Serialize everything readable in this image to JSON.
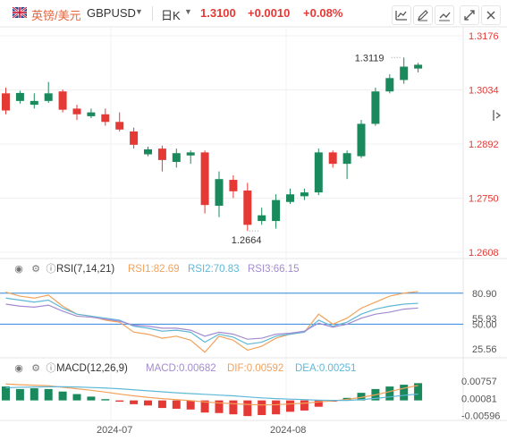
{
  "header": {
    "pair_name": "英镑/美元",
    "symbol": "GBPUSD",
    "period": "日K",
    "price": "1.3100",
    "change": "+0.0010",
    "change_pct": "+0.08%"
  },
  "toolbar": {
    "icons": [
      "chart-type-icon",
      "draw-icon",
      "compare-icon",
      "fullscreen-icon",
      "close-icon"
    ]
  },
  "indicators": {
    "rsi": {
      "label": "RSI(7,14,21)",
      "rsi1": "RSI1:82.69",
      "rsi2": "RSI2:70.83",
      "rsi3": "RSI3:66.15"
    },
    "macd": {
      "label": "MACD(12,26,9)",
      "macd": "MACD:0.00682",
      "dif": "DIF:0.00592",
      "dea": "DEA:0.00251"
    }
  },
  "colors": {
    "up": "#1a8a5c",
    "down": "#e53935",
    "rsi1": "#f2a25c",
    "rsi2": "#5fb8d6",
    "rsi3": "#a38bd1",
    "level": "#2e86de"
  },
  "chart_data": {
    "type": "candlestick",
    "y_ticks": [
      "1.3176",
      "1.3034",
      "1.2892",
      "1.2750",
      "1.2608"
    ],
    "y_values": [
      1.3176,
      1.3034,
      1.2892,
      1.275,
      1.2608
    ],
    "x_ticks": [
      "2024-07",
      "2024-08"
    ],
    "annotations": [
      "1.3119",
      "1.2664"
    ],
    "candles": [
      {
        "o": 1.3025,
        "h": 1.304,
        "l": 1.297,
        "c": 1.298
      },
      {
        "o": 1.3005,
        "h": 1.3032,
        "l": 1.2998,
        "c": 1.3026
      },
      {
        "o": 1.2995,
        "h": 1.3025,
        "l": 1.2985,
        "c": 1.3005
      },
      {
        "o": 1.3005,
        "h": 1.3055,
        "l": 1.3,
        "c": 1.3025
      },
      {
        "o": 1.303,
        "h": 1.3035,
        "l": 1.2975,
        "c": 1.2982
      },
      {
        "o": 1.2985,
        "h": 1.2995,
        "l": 1.2955,
        "c": 1.297
      },
      {
        "o": 1.2965,
        "h": 1.2985,
        "l": 1.296,
        "c": 1.2975
      },
      {
        "o": 1.297,
        "h": 1.2985,
        "l": 1.294,
        "c": 1.295
      },
      {
        "o": 1.295,
        "h": 1.2975,
        "l": 1.2925,
        "c": 1.293
      },
      {
        "o": 1.2925,
        "h": 1.2935,
        "l": 1.288,
        "c": 1.289
      },
      {
        "o": 1.2865,
        "h": 1.2885,
        "l": 1.286,
        "c": 1.2878
      },
      {
        "o": 1.288,
        "h": 1.2888,
        "l": 1.282,
        "c": 1.285
      },
      {
        "o": 1.2845,
        "h": 1.288,
        "l": 1.283,
        "c": 1.2868
      },
      {
        "o": 1.2862,
        "h": 1.2875,
        "l": 1.284,
        "c": 1.287
      },
      {
        "o": 1.287,
        "h": 1.2875,
        "l": 1.271,
        "c": 1.2732
      },
      {
        "o": 1.273,
        "h": 1.282,
        "l": 1.27,
        "c": 1.28
      },
      {
        "o": 1.2798,
        "h": 1.281,
        "l": 1.275,
        "c": 1.2768
      },
      {
        "o": 1.277,
        "h": 1.279,
        "l": 1.2664,
        "c": 1.268
      },
      {
        "o": 1.269,
        "h": 1.2725,
        "l": 1.268,
        "c": 1.2705
      },
      {
        "o": 1.269,
        "h": 1.276,
        "l": 1.267,
        "c": 1.2745
      },
      {
        "o": 1.274,
        "h": 1.2775,
        "l": 1.2735,
        "c": 1.276
      },
      {
        "o": 1.2755,
        "h": 1.2775,
        "l": 1.2745,
        "c": 1.2765
      },
      {
        "o": 1.2765,
        "h": 1.288,
        "l": 1.2758,
        "c": 1.287
      },
      {
        "o": 1.287,
        "h": 1.2875,
        "l": 1.283,
        "c": 1.284
      },
      {
        "o": 1.284,
        "h": 1.2875,
        "l": 1.28,
        "c": 1.2868
      },
      {
        "o": 1.286,
        "h": 1.2955,
        "l": 1.2855,
        "c": 1.2945
      },
      {
        "o": 1.2945,
        "h": 1.304,
        "l": 1.294,
        "c": 1.303
      },
      {
        "o": 1.303,
        "h": 1.3075,
        "l": 1.3025,
        "c": 1.3065
      },
      {
        "o": 1.306,
        "h": 1.3119,
        "l": 1.305,
        "c": 1.3095
      },
      {
        "o": 1.309,
        "h": 1.3105,
        "l": 1.308,
        "c": 1.31
      }
    ],
    "rsi": {
      "ticks": [
        "80.90",
        "55.93",
        "50.00",
        "25.56"
      ],
      "levels": [
        80.9,
        50.0
      ],
      "rsi1": [
        82,
        78,
        76,
        79,
        68,
        60,
        58,
        54,
        52,
        42,
        40,
        36,
        38,
        34,
        22,
        38,
        34,
        24,
        28,
        36,
        40,
        42,
        60,
        50,
        56,
        66,
        72,
        78,
        81,
        82.69
      ],
      "rsi2": [
        76,
        74,
        72,
        74,
        66,
        60,
        58,
        56,
        54,
        48,
        46,
        43,
        44,
        42,
        32,
        40,
        37,
        30,
        32,
        38,
        40,
        42,
        54,
        48,
        52,
        60,
        65,
        68,
        70,
        70.83
      ],
      "rsi3": [
        70,
        68,
        67,
        69,
        63,
        58,
        57,
        55,
        53,
        49,
        48,
        46,
        46,
        44,
        38,
        42,
        40,
        35,
        36,
        40,
        41,
        43,
        51,
        47,
        50,
        56,
        60,
        62,
        65,
        66.15
      ]
    },
    "macd": {
      "ticks": [
        "0.00757",
        "0.00081",
        "-0.00596"
      ],
      "hist": [
        0.0055,
        0.0045,
        0.0048,
        0.0045,
        0.0035,
        0.0025,
        0.0015,
        0.0005,
        -0.0005,
        -0.0015,
        -0.002,
        -0.003,
        -0.0033,
        -0.0036,
        -0.0048,
        -0.005,
        -0.0055,
        -0.0062,
        -0.0058,
        -0.0055,
        -0.0045,
        -0.004,
        -0.0025,
        -0.0005,
        0.001,
        0.003,
        0.0045,
        0.0055,
        0.0062,
        0.00682
      ],
      "dif": [
        0.0065,
        0.0062,
        0.006,
        0.0058,
        0.0052,
        0.0046,
        0.004,
        0.0033,
        0.0025,
        0.0018,
        0.0012,
        0.0007,
        0.0003,
        -0.0001,
        -0.0006,
        -0.001,
        -0.0013,
        -0.0016,
        -0.0018,
        -0.0017,
        -0.0014,
        -0.0011,
        -0.0006,
        -0.0002,
        0.0004,
        0.0012,
        0.0022,
        0.0035,
        0.0048,
        0.00592
      ],
      "dea": [
        0.005,
        0.0052,
        0.0053,
        0.0054,
        0.0054,
        0.0053,
        0.0051,
        0.0049,
        0.0046,
        0.0042,
        0.0038,
        0.0034,
        0.003,
        0.0027,
        0.0024,
        0.0021,
        0.0018,
        0.0014,
        0.001,
        0.0007,
        0.0005,
        0.0003,
        0.0001,
        0.0,
        0.0,
        0.0003,
        0.0008,
        0.0014,
        0.002,
        0.00251
      ]
    }
  }
}
